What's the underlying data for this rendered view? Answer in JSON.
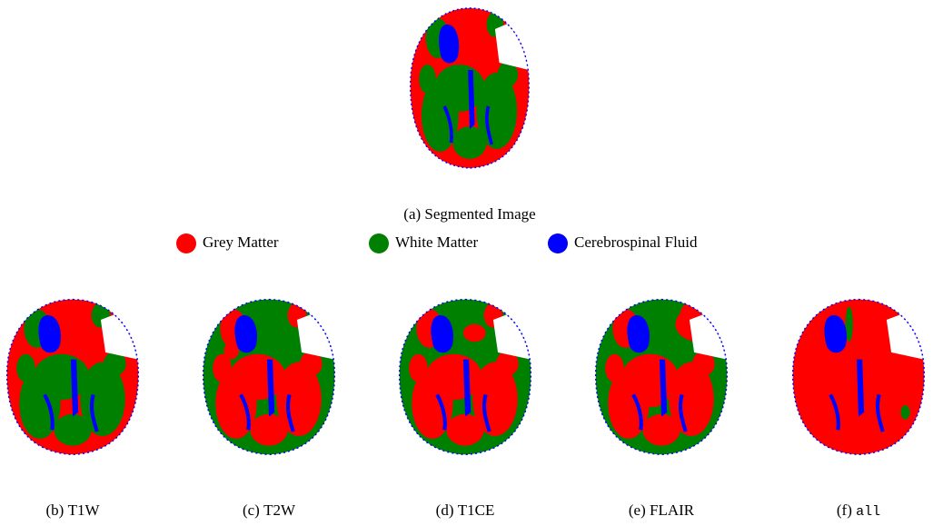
{
  "top_panel": {
    "caption": "(a) Segmented Image"
  },
  "legend": [
    {
      "label": "Grey Matter",
      "color": "#ff0000"
    },
    {
      "label": "White Matter",
      "color": "#008000"
    },
    {
      "label": "Cerebrospinal Fluid",
      "color": "#0000ff"
    }
  ],
  "panels": [
    {
      "tag": "(b)",
      "name": "T1W"
    },
    {
      "tag": "(c)",
      "name": "T2W"
    },
    {
      "tag": "(d)",
      "name": "T1CE"
    },
    {
      "tag": "(e)",
      "name": "FLAIR"
    },
    {
      "tag": "(f)",
      "name": "all"
    }
  ]
}
